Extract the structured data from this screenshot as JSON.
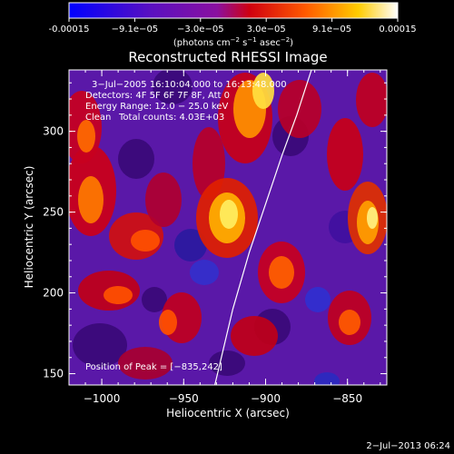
{
  "colorbar": {
    "ticks": [
      "-0.00015",
      "−9.1e−05",
      "−3.0e−05",
      "3.0e−05",
      "9.1e−05",
      "0.00015"
    ],
    "units_text": "(photons cm",
    "units_exp1": "−2",
    "units_s": " s",
    "units_exp2": "−1",
    "units_asec": " asec",
    "units_exp3": "−2",
    "units_close": ")",
    "range": [
      -0.00015,
      0.00015
    ],
    "colors": [
      "#0000ff",
      "#5500c8",
      "#ff0000",
      "#ff9900",
      "#ffffff"
    ]
  },
  "chart_data": {
    "type": "heatmap",
    "title": "Reconstructed RHESSI Image",
    "xlabel": "Heliocentric X (arcsec)",
    "ylabel": "Heliocentric Y (arcsec)",
    "xlim": [
      -1020,
      -826
    ],
    "ylim": [
      143,
      338
    ],
    "x_ticks": [
      -1000,
      -950,
      -900,
      -850
    ],
    "y_ticks": [
      150,
      200,
      250,
      300
    ],
    "x_tick_labels": [
      "−1000",
      "−950",
      "−900",
      "−850"
    ],
    "y_tick_labels": [
      "150",
      "200",
      "250",
      "300"
    ],
    "limb_curve": [
      [
        -931,
        143
      ],
      [
        -920,
        190
      ],
      [
        -910,
        225
      ],
      [
        -900,
        255
      ],
      [
        -890,
        285
      ],
      [
        -881,
        310
      ],
      [
        -872,
        338
      ]
    ],
    "peak_position": [
      -835,
      242
    ],
    "annotations": {
      "time_range": "3−Jul−2005 16:10:04.000 to 16:13:48.000",
      "detectors": "Detectors: 4F 5F 6F 7F 8F, Att 0",
      "energy": "Energy Range: 12.0 − 25.0 keV",
      "clean": "Clean",
      "counts": "Total counts: 4.03E+03",
      "peak": "Position of Peak = [−835,242]"
    },
    "grid": false
  },
  "timestamp": "2−Jul−2013 06:24"
}
